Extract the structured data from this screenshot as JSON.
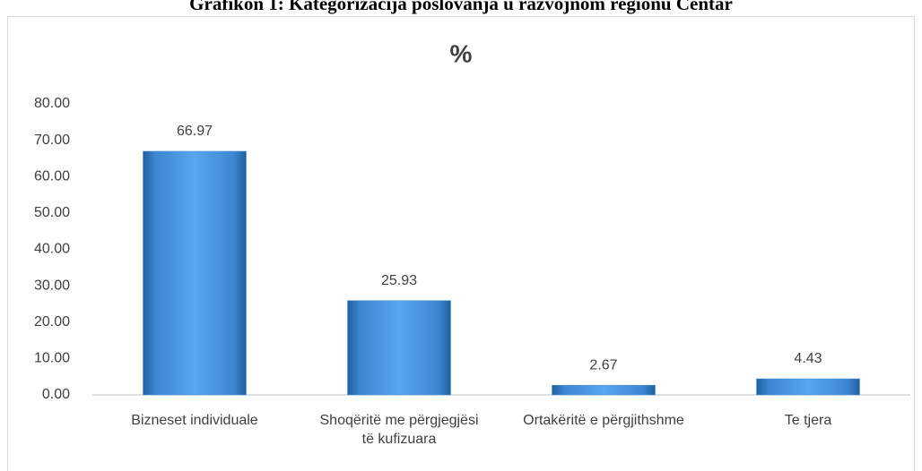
{
  "chart_data": {
    "type": "bar",
    "heading": "Grafikon 1: Kategorizacija poslovanja u razvojnom regionu Centar",
    "title": "%",
    "categories": [
      "Bizneset individuale",
      "Shoqëritë me përgjegjësi të kufizuara",
      "Ortakëritë e përgjithshme",
      "Te tjera"
    ],
    "values": [
      66.97,
      25.93,
      2.67,
      4.43
    ],
    "color": "#4a90d9",
    "ylim": [
      0,
      80
    ],
    "yticks": [
      {
        "value": 0,
        "label": "0.00"
      },
      {
        "value": 10,
        "label": "10.00"
      },
      {
        "value": 20,
        "label": "20.00"
      },
      {
        "value": 30,
        "label": "30.00"
      },
      {
        "value": 40,
        "label": "40.00"
      },
      {
        "value": 50,
        "label": "50.00"
      },
      {
        "value": 60,
        "label": "60.00"
      },
      {
        "value": 70,
        "label": "70.00"
      },
      {
        "value": 80,
        "label": "80.00"
      }
    ],
    "grid": false
  }
}
